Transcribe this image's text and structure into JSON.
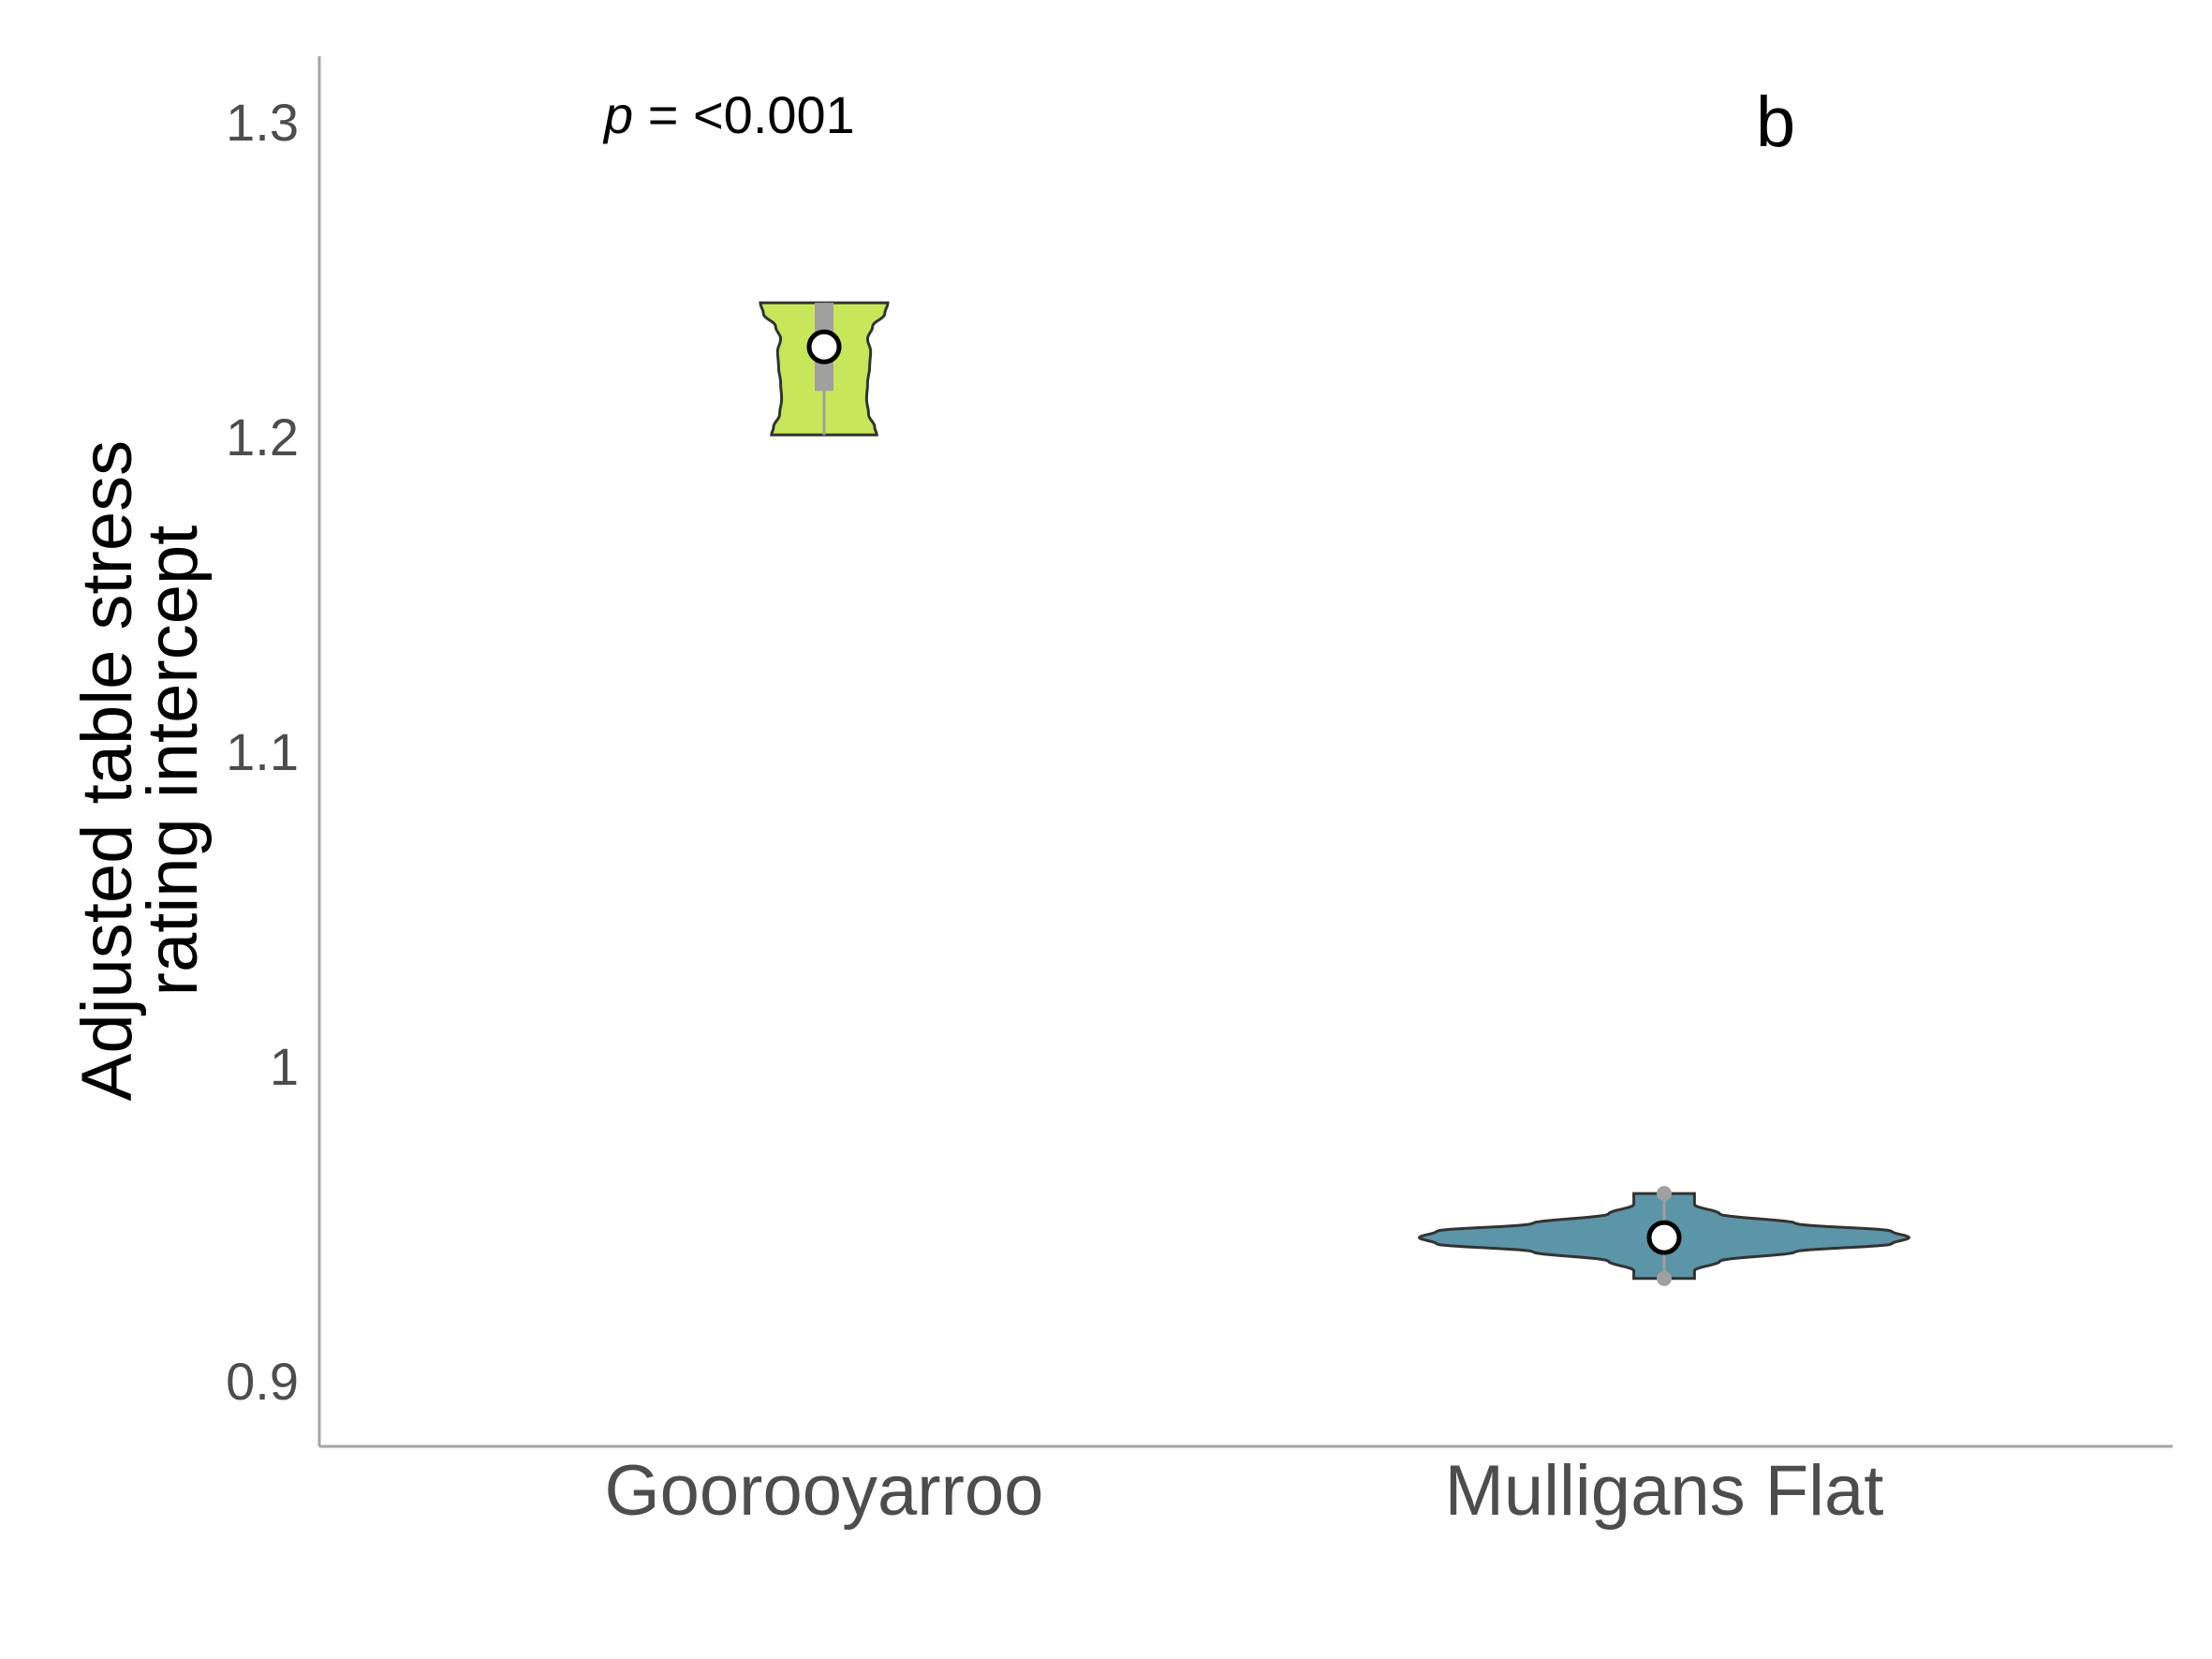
{
  "chart_data": {
    "type": "violin",
    "categories": [
      "Gooroo​yarroo",
      "Mulligans Flat"
    ],
    "ylabel_lines": [
      "Adjusted table stress",
      "rating intercept"
    ],
    "xlabel": "",
    "ylim": [
      0.88,
      1.32
    ],
    "yticks": [
      0.9,
      1.0,
      1.1,
      1.2,
      1.3
    ],
    "ytick_labels": [
      "0.9",
      "1",
      "1.1",
      "1.2",
      "1.3"
    ],
    "grid": false,
    "annotation": {
      "p_symbol": "p",
      "p_text": " = <0.001"
    },
    "panel_label": "b",
    "series": [
      {
        "category": "Gooroo​yarroo",
        "fill": "#c8e65a",
        "min": 1.2005,
        "max": 1.2425,
        "q1": 1.2145,
        "q3": 1.2425,
        "median": 1.2285,
        "mean": 1.2285,
        "outliers": [],
        "density_profile": [
          [
            1.2005,
            0.52
          ],
          [
            1.203,
            0.5
          ],
          [
            1.207,
            0.44
          ],
          [
            1.212,
            0.42
          ],
          [
            1.217,
            0.43
          ],
          [
            1.222,
            0.45
          ],
          [
            1.227,
            0.46
          ],
          [
            1.231,
            0.43
          ],
          [
            1.235,
            0.48
          ],
          [
            1.239,
            0.6
          ],
          [
            1.2425,
            0.63
          ]
        ]
      },
      {
        "category": "Mulligans Flat",
        "fill": "#5b95a7",
        "min": 0.9325,
        "max": 0.9595,
        "q1": 0.9455,
        "q3": 0.9455,
        "median": 0.9455,
        "mean": 0.9455,
        "outliers": [
          0.9595,
          0.9325
        ],
        "density_profile": [
          [
            0.9325,
            0.3
          ],
          [
            0.935,
            0.3
          ],
          [
            0.938,
            0.55
          ],
          [
            0.941,
            1.3
          ],
          [
            0.9435,
            2.25
          ],
          [
            0.9455,
            2.42
          ],
          [
            0.9475,
            2.25
          ],
          [
            0.95,
            1.3
          ],
          [
            0.953,
            0.55
          ],
          [
            0.956,
            0.3
          ],
          [
            0.9595,
            0.3
          ]
        ]
      }
    ]
  }
}
